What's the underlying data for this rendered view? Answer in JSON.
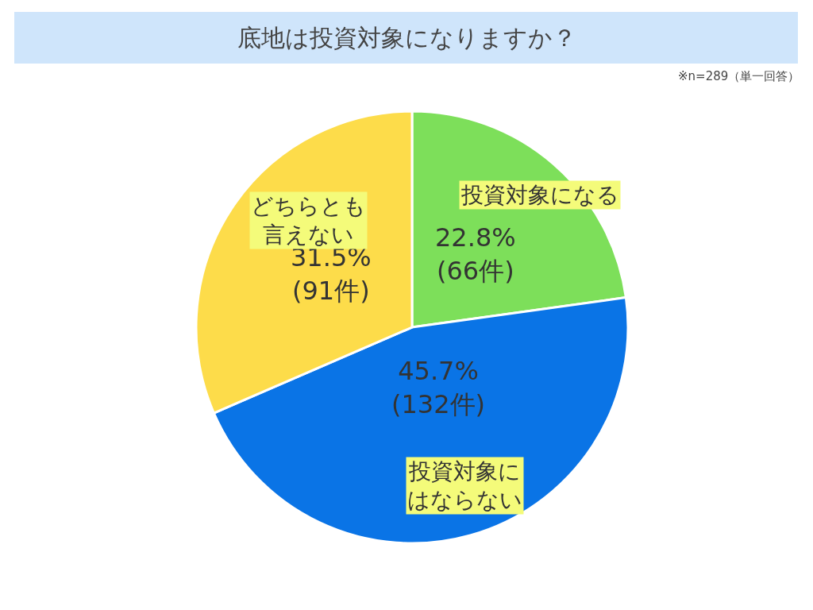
{
  "chart_data": {
    "type": "pie",
    "title": "底地は投資対象になりますか？",
    "subtitle": "※n=289（単一回答）",
    "categories": [
      "投資対象になる",
      "投資対象にはならない",
      "どちらとも言えない"
    ],
    "values": [
      22.8,
      45.7,
      31.5
    ],
    "colors": [
      "#7ddf5a",
      "#0a74e6",
      "#fddc4a"
    ],
    "value_labels": [
      "22.8%\n(66件)",
      "45.7%\n(132件)",
      "31.5%\n(91件)"
    ],
    "legend": false
  }
}
